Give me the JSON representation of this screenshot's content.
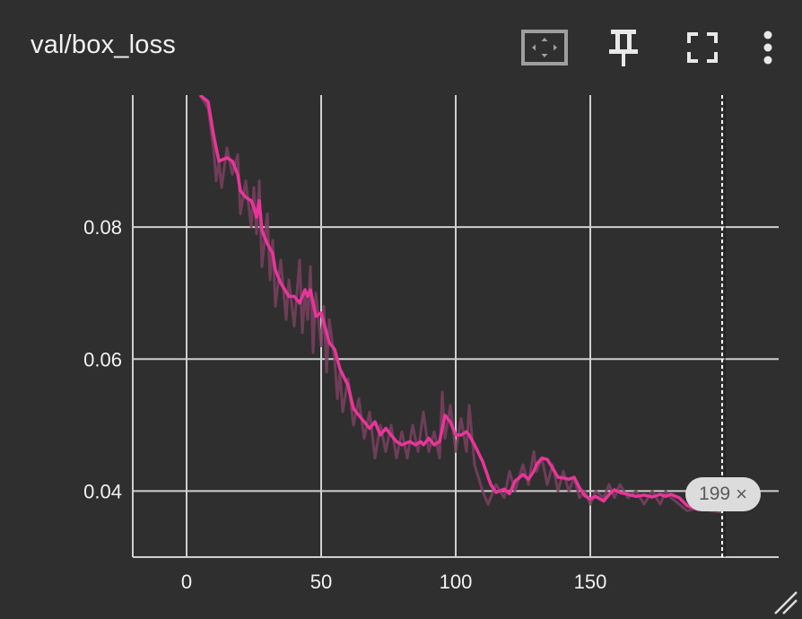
{
  "card": {
    "title": "val/box_loss",
    "toolbar": {
      "fit_icon": "fit-domain-icon",
      "pin_icon": "pin-icon",
      "fullscreen_icon": "fullscreen-icon",
      "more_icon": "more-vert-icon"
    },
    "step_badge": {
      "value": "199",
      "close_symbol": "×"
    },
    "resize_icon": "resize-handle-icon"
  },
  "colors": {
    "background": "#2f2f2f",
    "grid": "#cfcfcf",
    "smoothed_line": "#e8359a",
    "raw_line": "#7a3f5f",
    "cursor_line": "#ffffff"
  },
  "chart_data": {
    "type": "line",
    "title": "val/box_loss",
    "xlabel": "",
    "ylabel": "",
    "xlim": [
      -20,
      220
    ],
    "ylim": [
      0.03,
      0.1
    ],
    "x_ticks": [
      0,
      50,
      100,
      150
    ],
    "y_ticks": [
      0.04,
      0.06,
      0.08
    ],
    "y_tick_labels": [
      "0.04",
      "0.06",
      "0.08"
    ],
    "grid": true,
    "cursor_step": 199,
    "series": [
      {
        "smoothed": true,
        "x": [
          5,
          8,
          10,
          12,
          15,
          17,
          19,
          20,
          22,
          24,
          25,
          26,
          27,
          28,
          30,
          32,
          33,
          35,
          38,
          40,
          42,
          44,
          45,
          46,
          48,
          50,
          51,
          52,
          53,
          55,
          57,
          60,
          62,
          64,
          66,
          68,
          70,
          72,
          74,
          76,
          78,
          80,
          83,
          85,
          87,
          88,
          90,
          92,
          94,
          96,
          98,
          100,
          102,
          104,
          105,
          107,
          110,
          113,
          115,
          118,
          120,
          122,
          125,
          127,
          129,
          130,
          132,
          134,
          136,
          138,
          140,
          142,
          144,
          146,
          148,
          150,
          152,
          155,
          157,
          159,
          161,
          164,
          167,
          170,
          173,
          176,
          178,
          180,
          183,
          186,
          190,
          195,
          199
        ],
        "y": [
          0.1,
          0.099,
          0.094,
          0.09,
          0.0905,
          0.09,
          0.088,
          0.0855,
          0.0845,
          0.084,
          0.083,
          0.0815,
          0.084,
          0.0795,
          0.0775,
          0.076,
          0.0735,
          0.0715,
          0.0695,
          0.0695,
          0.0685,
          0.0705,
          0.0695,
          0.0705,
          0.0665,
          0.067,
          0.0655,
          0.064,
          0.0625,
          0.0615,
          0.0585,
          0.056,
          0.0525,
          0.0515,
          0.0505,
          0.0495,
          0.0505,
          0.0485,
          0.0495,
          0.0485,
          0.0475,
          0.047,
          0.0475,
          0.047,
          0.0475,
          0.047,
          0.048,
          0.047,
          0.0475,
          0.0515,
          0.0505,
          0.0485,
          0.0485,
          0.049,
          0.0485,
          0.047,
          0.0445,
          0.041,
          0.0398,
          0.0403,
          0.0396,
          0.0415,
          0.0425,
          0.0418,
          0.043,
          0.044,
          0.045,
          0.0448,
          0.0435,
          0.0421,
          0.042,
          0.0418,
          0.0421,
          0.0405,
          0.0393,
          0.0388,
          0.0392,
          0.0385,
          0.0395,
          0.0402,
          0.0398,
          0.0395,
          0.0392,
          0.0394,
          0.0391,
          0.0395,
          0.0392,
          0.0395,
          0.039,
          0.0378,
          0.0372,
          0.0373,
          0.037
        ]
      },
      {
        "smoothed": false,
        "x": [
          5,
          8,
          10,
          11,
          12,
          13,
          15,
          17,
          19,
          20,
          22,
          24,
          25,
          26,
          27,
          28,
          30,
          31,
          32,
          33,
          35,
          37,
          38,
          40,
          42,
          43,
          44,
          45,
          46,
          47,
          48,
          50,
          51,
          52,
          53,
          55,
          56,
          57,
          58,
          60,
          62,
          64,
          66,
          68,
          70,
          72,
          74,
          76,
          78,
          80,
          82,
          84,
          86,
          88,
          90,
          92,
          94,
          95,
          96,
          98,
          100,
          102,
          104,
          105,
          107,
          110,
          112,
          115,
          118,
          120,
          122,
          125,
          127,
          129,
          130,
          132,
          134,
          136,
          138,
          140,
          142,
          144,
          146,
          148,
          150,
          152,
          155,
          157,
          159,
          161,
          164,
          167,
          170,
          173,
          176,
          178,
          180,
          183,
          186,
          190,
          195,
          199
        ],
        "y": [
          0.1,
          0.098,
          0.092,
          0.087,
          0.09,
          0.086,
          0.092,
          0.088,
          0.091,
          0.082,
          0.087,
          0.08,
          0.086,
          0.079,
          0.087,
          0.074,
          0.082,
          0.072,
          0.078,
          0.068,
          0.075,
          0.066,
          0.072,
          0.065,
          0.075,
          0.064,
          0.07,
          0.066,
          0.074,
          0.061,
          0.07,
          0.062,
          0.068,
          0.058,
          0.066,
          0.06,
          0.054,
          0.058,
          0.052,
          0.057,
          0.05,
          0.054,
          0.048,
          0.052,
          0.045,
          0.05,
          0.046,
          0.05,
          0.045,
          0.049,
          0.045,
          0.05,
          0.046,
          0.052,
          0.046,
          0.049,
          0.045,
          0.055,
          0.048,
          0.053,
          0.046,
          0.051,
          0.046,
          0.053,
          0.044,
          0.04,
          0.038,
          0.041,
          0.039,
          0.043,
          0.04,
          0.044,
          0.041,
          0.046,
          0.043,
          0.045,
          0.041,
          0.044,
          0.04,
          0.043,
          0.04,
          0.042,
          0.039,
          0.04,
          0.038,
          0.04,
          0.039,
          0.041,
          0.039,
          0.041,
          0.039,
          0.04,
          0.038,
          0.04,
          0.038,
          0.04,
          0.039,
          0.038,
          0.037,
          0.0375,
          0.037,
          0.0368
        ]
      }
    ]
  }
}
